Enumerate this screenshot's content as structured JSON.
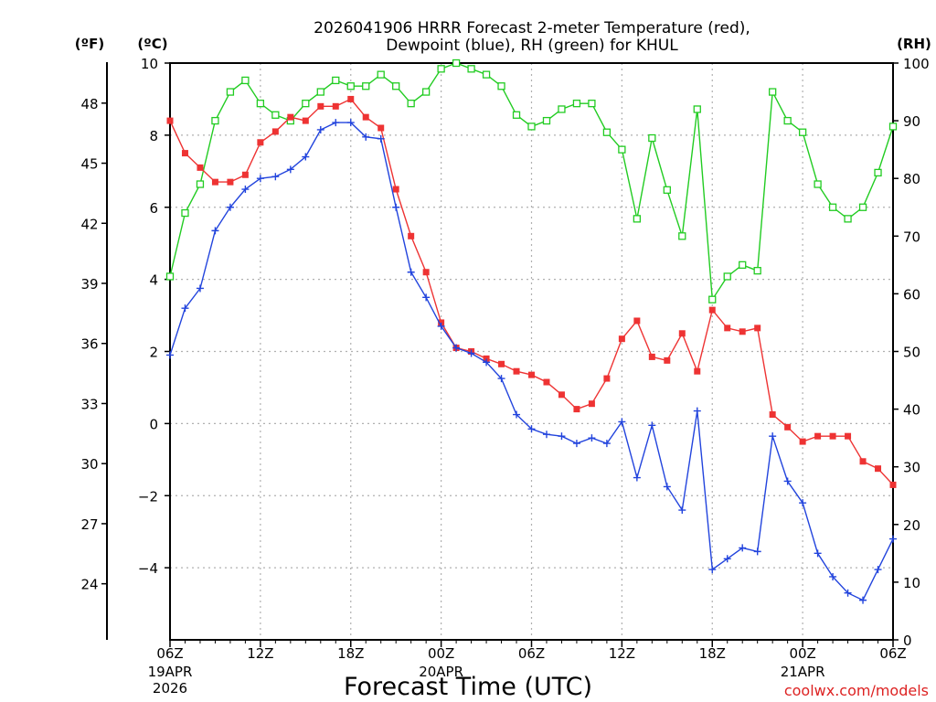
{
  "title": {
    "line1": "2026041906 HRRR Forecast 2-meter Temperature (red),",
    "line2": "Dewpoint (blue), RH (green) for KHUL"
  },
  "units": {
    "fahrenheit": "(ºF)",
    "celsius": "(ºC)",
    "rh": "(RH)"
  },
  "xlabel": "Forecast Time (UTC)",
  "watermark": "coolwx.com/models",
  "colors": {
    "temperature": "#ee3333",
    "dewpoint": "#2244dd",
    "rh": "#22cc22",
    "grid": "#b0b0b0",
    "watermark": "#dd2222"
  },
  "chart_data": {
    "type": "line",
    "title": "2026041906 HRRR Forecast 2-meter Temperature (red), Dewpoint (blue), RH (green) for KHUL",
    "xlabel": "Forecast Time (UTC)",
    "x_hours": [
      0,
      1,
      2,
      3,
      4,
      5,
      6,
      7,
      8,
      9,
      10,
      11,
      12,
      13,
      14,
      15,
      16,
      17,
      18,
      19,
      20,
      21,
      22,
      23,
      24,
      25,
      26,
      27,
      28,
      29,
      30,
      31,
      32,
      33,
      34,
      35,
      36,
      37,
      38,
      39,
      40,
      41,
      42,
      43,
      44,
      45,
      46,
      47,
      48
    ],
    "xlim": [
      0,
      48
    ],
    "x_tick_hours": [
      0,
      6,
      12,
      18,
      24,
      30,
      36,
      42,
      48
    ],
    "x_tick_labels": [
      "06Z",
      "12Z",
      "18Z",
      "00Z",
      "06Z",
      "12Z",
      "18Z",
      "00Z",
      "06Z"
    ],
    "x_date_labels": [
      {
        "hour": 0,
        "lines": [
          "19APR",
          "2026"
        ]
      },
      {
        "hour": 18,
        "lines": [
          "20APR"
        ]
      },
      {
        "hour": 42,
        "lines": [
          "21APR"
        ]
      }
    ],
    "left_axis": {
      "label": "(ºC)",
      "ylim": [
        -6,
        10
      ],
      "ticks": [
        -4,
        -2,
        0,
        2,
        4,
        6,
        8,
        10
      ],
      "tick_labels": [
        "−4",
        "−2",
        "0",
        "2",
        "4",
        "6",
        "8",
        "10"
      ]
    },
    "f_axis": {
      "label": "(ºF)",
      "ticks": [
        24,
        27,
        30,
        33,
        36,
        39,
        42,
        45,
        48
      ],
      "tick_labels": [
        "24",
        "27",
        "30",
        "33",
        "36",
        "39",
        "42",
        "45",
        "48"
      ]
    },
    "right_axis": {
      "label": "(RH)",
      "ylim": [
        0,
        100
      ],
      "ticks": [
        0,
        10,
        20,
        30,
        40,
        50,
        60,
        70,
        80,
        90,
        100
      ],
      "tick_labels": [
        "0",
        "10",
        "20",
        "30",
        "40",
        "50",
        "60",
        "70",
        "80",
        "90",
        "100"
      ]
    },
    "series": [
      {
        "name": "Temperature",
        "unit": "°C",
        "axis": "left",
        "marker": "filled-square",
        "values": [
          8.4,
          7.5,
          7.1,
          6.7,
          6.7,
          6.9,
          7.8,
          8.1,
          8.5,
          8.4,
          8.8,
          8.8,
          9.0,
          8.5,
          8.2,
          6.5,
          5.2,
          4.2,
          2.8,
          2.1,
          2.0,
          1.8,
          1.65,
          1.45,
          1.35,
          1.15,
          0.8,
          0.4,
          0.55,
          1.25,
          2.35,
          2.85,
          1.85,
          1.75,
          2.5,
          1.45,
          3.15,
          2.65,
          2.55,
          2.65,
          0.25,
          -0.1,
          -0.5,
          -0.35,
          -0.35,
          -0.35,
          -1.05,
          -1.25,
          -1.7
        ]
      },
      {
        "name": "Dewpoint",
        "unit": "°C",
        "axis": "left",
        "marker": "plus",
        "values": [
          1.9,
          3.2,
          3.75,
          5.35,
          6.0,
          6.5,
          6.8,
          6.85,
          7.05,
          7.4,
          8.15,
          8.35,
          8.35,
          7.95,
          7.9,
          6.0,
          4.2,
          3.5,
          2.7,
          2.1,
          1.95,
          1.7,
          1.25,
          0.25,
          -0.15,
          -0.3,
          -0.35,
          -0.55,
          -0.4,
          -0.55,
          0.05,
          -1.5,
          -0.05,
          -1.75,
          -2.4,
          0.35,
          -4.05,
          -3.75,
          -3.45,
          -3.55,
          -0.35,
          -1.6,
          -2.2,
          -3.6,
          -4.25,
          -4.7,
          -4.9,
          -4.05,
          -3.2
        ]
      },
      {
        "name": "RH",
        "unit": "%",
        "axis": "right",
        "marker": "open-square",
        "values": [
          63,
          74,
          79,
          90,
          95,
          97,
          93,
          91,
          90,
          93,
          95,
          97,
          96,
          96,
          98,
          96,
          93,
          95,
          99,
          100,
          99,
          98,
          96,
          91,
          89,
          90,
          92,
          93,
          93,
          88,
          85,
          73,
          87,
          78,
          70,
          92,
          59,
          63,
          65,
          64,
          95,
          90,
          88,
          79,
          75,
          73,
          75,
          81,
          89
        ]
      }
    ]
  }
}
